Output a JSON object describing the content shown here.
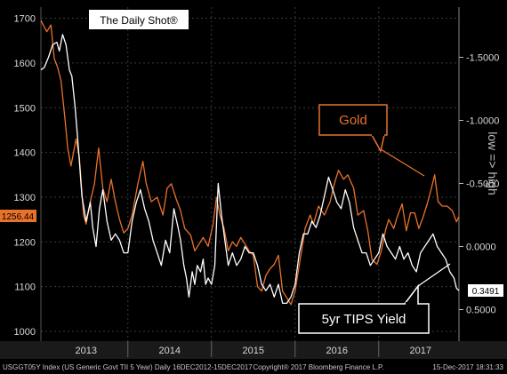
{
  "chart_data": {
    "type": "line",
    "watermark": "The Daily Shot®",
    "left_axis": {
      "min": 1000,
      "max": 1700,
      "ticks": [
        1000,
        1100,
        1200,
        1300,
        1400,
        1500,
        1600,
        1700
      ],
      "tick_labels": [
        "1000",
        "1100",
        "1200",
        "1300",
        "1400",
        "1500",
        "1600",
        "1700"
      ]
    },
    "right_axis": {
      "inverted": true,
      "min": -1.75,
      "max": 0.65,
      "ticks": [
        -1.5,
        -1.0,
        -0.5,
        0.0,
        0.5
      ],
      "tick_labels": [
        "-1.5000",
        "-1.0000",
        "-0.5000",
        "0.0000",
        "0.5000"
      ],
      "label": "low => high"
    },
    "x_axis": {
      "start": 2012.96,
      "end": 2017.96,
      "year_labels": [
        "2013",
        "2014",
        "2015",
        "2016",
        "2017"
      ],
      "year_centers": [
        2013.5,
        2014.5,
        2015.5,
        2016.5,
        2017.5
      ],
      "year_boundaries": [
        2014,
        2015,
        2016,
        2017
      ]
    },
    "series": [
      {
        "name": "Gold",
        "axis": "left",
        "color": "#e8722a",
        "last_value_label": "1256.44",
        "points": [
          [
            2012.96,
            1695
          ],
          [
            2013.03,
            1670
          ],
          [
            2013.08,
            1685
          ],
          [
            2013.12,
            1610
          ],
          [
            2013.16,
            1590
          ],
          [
            2013.2,
            1560
          ],
          [
            2013.25,
            1470
          ],
          [
            2013.28,
            1410
          ],
          [
            2013.32,
            1370
          ],
          [
            2013.38,
            1430
          ],
          [
            2013.42,
            1390
          ],
          [
            2013.47,
            1260
          ],
          [
            2013.5,
            1240
          ],
          [
            2013.55,
            1290
          ],
          [
            2013.6,
            1330
          ],
          [
            2013.65,
            1410
          ],
          [
            2013.7,
            1320
          ],
          [
            2013.75,
            1290
          ],
          [
            2013.8,
            1340
          ],
          [
            2013.85,
            1290
          ],
          [
            2013.9,
            1250
          ],
          [
            2013.95,
            1220
          ],
          [
            2014.0,
            1230
          ],
          [
            2014.05,
            1260
          ],
          [
            2014.12,
            1330
          ],
          [
            2014.18,
            1380
          ],
          [
            2014.22,
            1330
          ],
          [
            2014.28,
            1290
          ],
          [
            2014.35,
            1300
          ],
          [
            2014.42,
            1260
          ],
          [
            2014.47,
            1320
          ],
          [
            2014.52,
            1330
          ],
          [
            2014.58,
            1295
          ],
          [
            2014.63,
            1270
          ],
          [
            2014.68,
            1230
          ],
          [
            2014.75,
            1215
          ],
          [
            2014.8,
            1180
          ],
          [
            2014.85,
            1195
          ],
          [
            2014.9,
            1210
          ],
          [
            2014.96,
            1190
          ],
          [
            2015.02,
            1240
          ],
          [
            2015.06,
            1300
          ],
          [
            2015.1,
            1260
          ],
          [
            2015.15,
            1230
          ],
          [
            2015.2,
            1180
          ],
          [
            2015.25,
            1200
          ],
          [
            2015.3,
            1190
          ],
          [
            2015.35,
            1210
          ],
          [
            2015.4,
            1195
          ],
          [
            2015.45,
            1180
          ],
          [
            2015.5,
            1170
          ],
          [
            2015.55,
            1100
          ],
          [
            2015.6,
            1090
          ],
          [
            2015.65,
            1125
          ],
          [
            2015.7,
            1140
          ],
          [
            2015.75,
            1150
          ],
          [
            2015.8,
            1170
          ],
          [
            2015.85,
            1090
          ],
          [
            2015.9,
            1075
          ],
          [
            2015.95,
            1060
          ],
          [
            2016.0,
            1090
          ],
          [
            2016.06,
            1160
          ],
          [
            2016.12,
            1230
          ],
          [
            2016.18,
            1260
          ],
          [
            2016.22,
            1240
          ],
          [
            2016.28,
            1280
          ],
          [
            2016.35,
            1260
          ],
          [
            2016.42,
            1290
          ],
          [
            2016.47,
            1330
          ],
          [
            2016.52,
            1360
          ],
          [
            2016.58,
            1340
          ],
          [
            2016.63,
            1350
          ],
          [
            2016.7,
            1320
          ],
          [
            2016.75,
            1260
          ],
          [
            2016.82,
            1270
          ],
          [
            2016.87,
            1225
          ],
          [
            2016.92,
            1160
          ],
          [
            2016.98,
            1150
          ],
          [
            2017.03,
            1180
          ],
          [
            2017.08,
            1225
          ],
          [
            2017.12,
            1250
          ],
          [
            2017.18,
            1230
          ],
          [
            2017.22,
            1255
          ],
          [
            2017.28,
            1285
          ],
          [
            2017.33,
            1225
          ],
          [
            2017.38,
            1265
          ],
          [
            2017.43,
            1265
          ],
          [
            2017.48,
            1230
          ],
          [
            2017.53,
            1255
          ],
          [
            2017.58,
            1285
          ],
          [
            2017.63,
            1320
          ],
          [
            2017.67,
            1350
          ],
          [
            2017.71,
            1290
          ],
          [
            2017.76,
            1280
          ],
          [
            2017.82,
            1280
          ],
          [
            2017.88,
            1270
          ],
          [
            2017.93,
            1245
          ],
          [
            2017.96,
            1256
          ]
        ]
      },
      {
        "name": "5yr TIPS Yield",
        "axis": "right",
        "color": "#ffffff",
        "last_value_label": "0.3491",
        "points": [
          [
            2012.96,
            -1.4
          ],
          [
            2013.0,
            -1.42
          ],
          [
            2013.05,
            -1.5
          ],
          [
            2013.1,
            -1.6
          ],
          [
            2013.15,
            -1.62
          ],
          [
            2013.18,
            -1.55
          ],
          [
            2013.22,
            -1.68
          ],
          [
            2013.26,
            -1.6
          ],
          [
            2013.3,
            -1.4
          ],
          [
            2013.33,
            -1.35
          ],
          [
            2013.37,
            -1.1
          ],
          [
            2013.4,
            -0.85
          ],
          [
            2013.45,
            -0.4
          ],
          [
            2013.5,
            -0.2
          ],
          [
            2013.55,
            -0.35
          ],
          [
            2013.58,
            -0.15
          ],
          [
            2013.62,
            0.0
          ],
          [
            2013.66,
            -0.3
          ],
          [
            2013.7,
            -0.45
          ],
          [
            2013.75,
            -0.2
          ],
          [
            2013.8,
            -0.05
          ],
          [
            2013.85,
            -0.1
          ],
          [
            2013.9,
            -0.05
          ],
          [
            2013.95,
            0.05
          ],
          [
            2014.0,
            0.05
          ],
          [
            2014.05,
            -0.2
          ],
          [
            2014.1,
            -0.35
          ],
          [
            2014.15,
            -0.45
          ],
          [
            2014.2,
            -0.3
          ],
          [
            2014.25,
            -0.2
          ],
          [
            2014.3,
            -0.05
          ],
          [
            2014.35,
            0.05
          ],
          [
            2014.4,
            0.15
          ],
          [
            2014.45,
            -0.05
          ],
          [
            2014.5,
            0.05
          ],
          [
            2014.55,
            -0.3
          ],
          [
            2014.6,
            -0.15
          ],
          [
            2014.63,
            -0.05
          ],
          [
            2014.67,
            0.15
          ],
          [
            2014.7,
            0.25
          ],
          [
            2014.73,
            0.4
          ],
          [
            2014.77,
            0.2
          ],
          [
            2014.8,
            0.3
          ],
          [
            2014.83,
            0.15
          ],
          [
            2014.87,
            0.2
          ],
          [
            2014.9,
            0.1
          ],
          [
            2014.93,
            0.3
          ],
          [
            2014.96,
            0.25
          ],
          [
            2015.0,
            0.3
          ],
          [
            2015.04,
            0.15
          ],
          [
            2015.08,
            -0.5
          ],
          [
            2015.12,
            -0.25
          ],
          [
            2015.16,
            -0.05
          ],
          [
            2015.2,
            0.15
          ],
          [
            2015.25,
            0.05
          ],
          [
            2015.3,
            0.15
          ],
          [
            2015.35,
            0.1
          ],
          [
            2015.4,
            0.0
          ],
          [
            2015.45,
            0.05
          ],
          [
            2015.5,
            0.05
          ],
          [
            2015.55,
            0.15
          ],
          [
            2015.6,
            0.3
          ],
          [
            2015.65,
            0.35
          ],
          [
            2015.7,
            0.3
          ],
          [
            2015.75,
            0.4
          ],
          [
            2015.8,
            0.3
          ],
          [
            2015.85,
            0.45
          ],
          [
            2015.9,
            0.45
          ],
          [
            2015.95,
            0.4
          ],
          [
            2016.0,
            0.3
          ],
          [
            2016.05,
            0.05
          ],
          [
            2016.1,
            -0.1
          ],
          [
            2016.15,
            -0.1
          ],
          [
            2016.2,
            -0.2
          ],
          [
            2016.25,
            -0.15
          ],
          [
            2016.3,
            -0.25
          ],
          [
            2016.35,
            -0.4
          ],
          [
            2016.4,
            -0.55
          ],
          [
            2016.45,
            -0.45
          ],
          [
            2016.5,
            -0.35
          ],
          [
            2016.55,
            -0.3
          ],
          [
            2016.6,
            -0.45
          ],
          [
            2016.65,
            -0.35
          ],
          [
            2016.7,
            -0.15
          ],
          [
            2016.75,
            -0.05
          ],
          [
            2016.8,
            0.05
          ],
          [
            2016.85,
            0.05
          ],
          [
            2016.9,
            0.15
          ],
          [
            2016.95,
            0.1
          ],
          [
            2017.0,
            0.05
          ],
          [
            2017.05,
            -0.1
          ],
          [
            2017.1,
            0.0
          ],
          [
            2017.15,
            0.05
          ],
          [
            2017.2,
            0.1
          ],
          [
            2017.25,
            0.0
          ],
          [
            2017.3,
            0.1
          ],
          [
            2017.35,
            0.05
          ],
          [
            2017.4,
            0.15
          ],
          [
            2017.45,
            0.2
          ],
          [
            2017.5,
            0.05
          ],
          [
            2017.55,
            0.0
          ],
          [
            2017.6,
            -0.05
          ],
          [
            2017.65,
            -0.1
          ],
          [
            2017.7,
            0.0
          ],
          [
            2017.75,
            0.05
          ],
          [
            2017.8,
            0.1
          ],
          [
            2017.85,
            0.2
          ],
          [
            2017.9,
            0.25
          ],
          [
            2017.93,
            0.33
          ],
          [
            2017.96,
            0.35
          ]
        ]
      }
    ],
    "annotations": {
      "gold": {
        "text": "Gold",
        "color": "#e8722a"
      },
      "tips": {
        "text": "5yr TIPS Yield",
        "color": "#ffffff"
      }
    },
    "footer": {
      "left": "USGGT05Y Index  (US Generic Govt TII 5 Year)  Daily 16DEC2012-15DEC2017",
      "center": "Copyright® 2017 Bloomberg Finance L.P.",
      "right": "15-Dec-2017  18:31:33"
    },
    "grid": true,
    "background": "#000000"
  }
}
